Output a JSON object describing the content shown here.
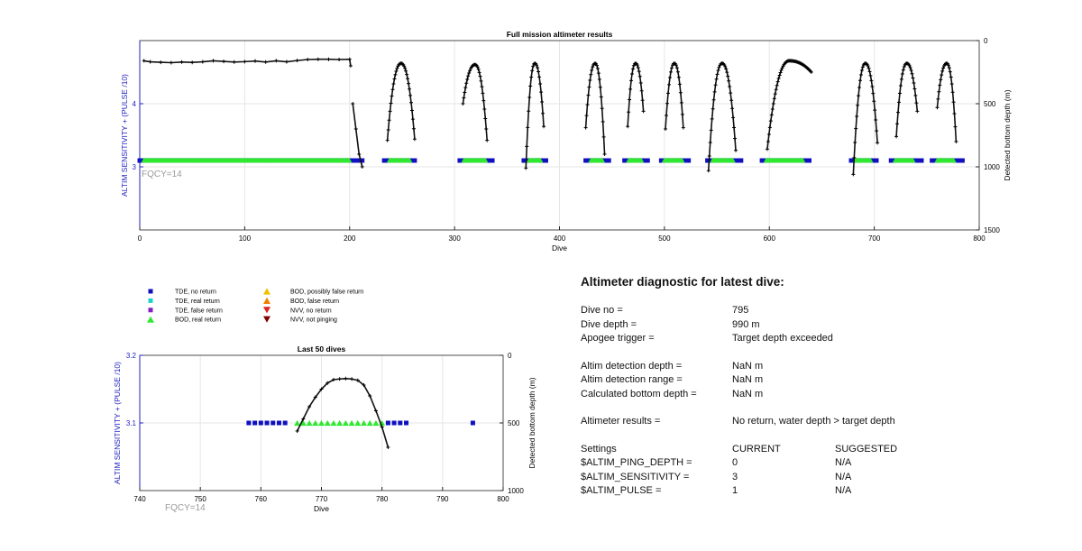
{
  "figure_background": "#ffffff",
  "chart_data": [
    {
      "id": "full",
      "type": "scatter",
      "title": "Full mission altimeter results",
      "xlabel": "Dive",
      "ylabel_left": "ALTIM SENSITIVITY + (PULSE /10)",
      "ylabel_right": "Detected bottom depth (m)",
      "xlim": [
        0,
        800
      ],
      "ylim_left": [
        2,
        5
      ],
      "ylim_right": [
        1500,
        0
      ],
      "xticks": [
        0,
        100,
        200,
        300,
        400,
        500,
        600,
        700,
        800
      ],
      "yticks_left": [
        3,
        4
      ],
      "yticks_right": [
        0,
        500,
        1000,
        1500
      ],
      "grid": true,
      "annotation": "FQCY=14",
      "series": [
        {
          "name": "TDE, no return",
          "marker": "square",
          "color": "#1010c0",
          "y": 3.1,
          "x_ranges": [
            [
              0,
              212
            ],
            [
              233,
              262
            ],
            [
              305,
              336
            ],
            [
              366,
              387
            ],
            [
              425,
              447
            ],
            [
              462,
              484
            ],
            [
              497,
              523
            ],
            [
              541,
              573
            ],
            [
              593,
              638
            ],
            [
              678,
              702
            ],
            [
              716,
              745
            ],
            [
              755,
              784
            ]
          ]
        },
        {
          "name": "BOD, real return",
          "marker": "triangle",
          "color": "#30e830",
          "y": 3.1,
          "x_ranges": [
            [
              4,
              200
            ],
            [
              238,
              258
            ],
            [
              309,
              330
            ],
            [
              371,
              382
            ],
            [
              430,
              441
            ],
            [
              466,
              478
            ],
            [
              500,
              517
            ],
            [
              546,
              566
            ],
            [
              597,
              632
            ],
            [
              682,
              697
            ],
            [
              720,
              738
            ],
            [
              760,
              776
            ]
          ]
        },
        {
          "name": "Detected bottom depth",
          "marker": "dot-line",
          "color": "#111111",
          "flat": {
            "x": [
              4,
              10,
              20,
              30,
              40,
              50,
              60,
              70,
              80,
              90,
              100,
              110,
              120,
              130,
              140,
              150,
              160,
              170,
              180,
              190,
              200,
              201
            ],
            "depth": [
              160,
              168,
              172,
              175,
              170,
              173,
              168,
              160,
              165,
              170,
              167,
              162,
              170,
              160,
              168,
              158,
              150,
              148,
              148,
              150,
              148,
              200
            ]
          },
          "tail": {
            "x": [
              203,
              206,
              209,
              212
            ],
            "depth": [
              500,
              700,
              900,
              1000
            ]
          },
          "dives": [
            {
              "x0": 236,
              "x1": 262,
              "top": 180,
              "depth_start": 790,
              "depth_end": 780
            },
            {
              "x0": 308,
              "x1": 331,
              "top": 190,
              "depth_start": 500,
              "depth_end": 790
            },
            {
              "x0": 368,
              "x1": 385,
              "top": 180,
              "depth_start": 1010,
              "depth_end": 680
            },
            {
              "x0": 425,
              "x1": 443,
              "top": 180,
              "depth_start": 690,
              "depth_end": 900
            },
            {
              "x0": 465,
              "x1": 480,
              "top": 180,
              "depth_start": 680,
              "depth_end": 560
            },
            {
              "x0": 501,
              "x1": 518,
              "top": 180,
              "depth_start": 700,
              "depth_end": 690
            },
            {
              "x0": 542,
              "x1": 568,
              "top": 180,
              "depth_start": 1030,
              "depth_end": 870
            },
            {
              "x0": 598,
              "x1": 640,
              "top": 160,
              "depth_start": 860,
              "depth_end": 250
            },
            {
              "x0": 680,
              "x1": 703,
              "top": 180,
              "depth_start": 1060,
              "depth_end": 810
            },
            {
              "x0": 721,
              "x1": 741,
              "top": 180,
              "depth_start": 760,
              "depth_end": 560
            },
            {
              "x0": 760,
              "x1": 778,
              "top": 180,
              "depth_start": 530,
              "depth_end": 800
            }
          ]
        }
      ]
    },
    {
      "id": "last50",
      "type": "scatter",
      "title": "Last 50 dives",
      "xlabel": "Dive",
      "ylabel_left": "ALTIM SENSITIVITY + (PULSE /10)",
      "ylabel_right": "Detected bottom depth (m)",
      "xlim": [
        740,
        800
      ],
      "ylim_left": [
        3.0,
        3.2
      ],
      "ylim_right": [
        1000,
        0
      ],
      "xticks": [
        740,
        750,
        760,
        770,
        780,
        790,
        800
      ],
      "yticks_left": [
        3.1,
        3.2
      ],
      "yticks_left_labels": [
        "3.1",
        "3.2"
      ],
      "yticks_right": [
        0,
        500,
        1000
      ],
      "grid": true,
      "annotation": "FQCY=14",
      "series": [
        {
          "name": "TDE, no return",
          "marker": "square",
          "color": "#1010c0",
          "y": 3.1,
          "x": [
            758,
            759,
            760,
            761,
            762,
            763,
            764,
            781,
            782,
            783,
            784,
            795
          ]
        },
        {
          "name": "BOD, real return",
          "marker": "triangle",
          "color": "#30e830",
          "y": 3.1,
          "x": [
            766,
            767,
            768,
            769,
            770,
            771,
            772,
            773,
            774,
            775,
            776,
            777,
            778,
            779,
            780
          ]
        },
        {
          "name": "Detected bottom depth",
          "marker": "dot-line",
          "color": "#111111",
          "x": [
            766,
            767,
            768,
            769,
            770,
            771,
            772,
            773,
            774,
            775,
            776,
            777,
            778,
            779,
            780,
            781
          ],
          "depth": [
            560,
            470,
            380,
            310,
            250,
            205,
            180,
            175,
            172,
            175,
            185,
            220,
            300,
            410,
            530,
            680
          ]
        }
      ]
    }
  ],
  "legend": {
    "items": [
      {
        "label": "TDE, no return",
        "marker": "square",
        "color": "#1010c0"
      },
      {
        "label": "TDE, real return",
        "marker": "square",
        "color": "#20d0d0"
      },
      {
        "label": "TDE, false return",
        "marker": "square",
        "color": "#8020c0"
      },
      {
        "label": "BOD, real return",
        "marker": "triangle-up",
        "color": "#30e830"
      },
      {
        "label": "BOD, possibly false return",
        "marker": "triangle-up",
        "color": "#f0c000"
      },
      {
        "label": "BOD, false return",
        "marker": "triangle-up",
        "color": "#f08000"
      },
      {
        "label": "NVV, no return",
        "marker": "triangle-down",
        "color": "#e02020"
      },
      {
        "label": "NVV, not pinging",
        "marker": "triangle-down",
        "color": "#800000"
      }
    ]
  },
  "diagnostic": {
    "title": "Altimeter diagnostic for latest dive:",
    "dive_no_label": "Dive no =",
    "dive_no_value": "795",
    "dive_depth_label": "Dive depth =",
    "dive_depth_value": "990 m",
    "apogee_label": "Apogee trigger =",
    "apogee_value": "Target depth exceeded",
    "det_depth_label": "Altim detection depth =",
    "det_depth_value": "NaN m",
    "det_range_label": "Altim detection range =",
    "det_range_value": "NaN m",
    "calc_depth_label": "Calculated bottom depth =",
    "calc_depth_value": "NaN m",
    "results_label": "Altimeter results =",
    "results_value": "No return, water depth > target depth",
    "settings_label": "Settings",
    "current_label": "CURRENT",
    "suggested_label": "SUGGESTED",
    "ping_depth_label": "$ALTIM_PING_DEPTH =",
    "ping_depth_current": "0",
    "ping_depth_suggested": "N/A",
    "sensitivity_label": "$ALTIM_SENSITIVITY =",
    "sensitivity_current": "3",
    "sensitivity_suggested": "N/A",
    "pulse_label": "$ALTIM_PULSE =",
    "pulse_current": "1",
    "pulse_suggested": "N/A"
  },
  "colors": {
    "axis_left": "#2020c0",
    "axis_right": "#000000",
    "grid": "#e6e6e6",
    "annotation": "#9a9a9a"
  }
}
